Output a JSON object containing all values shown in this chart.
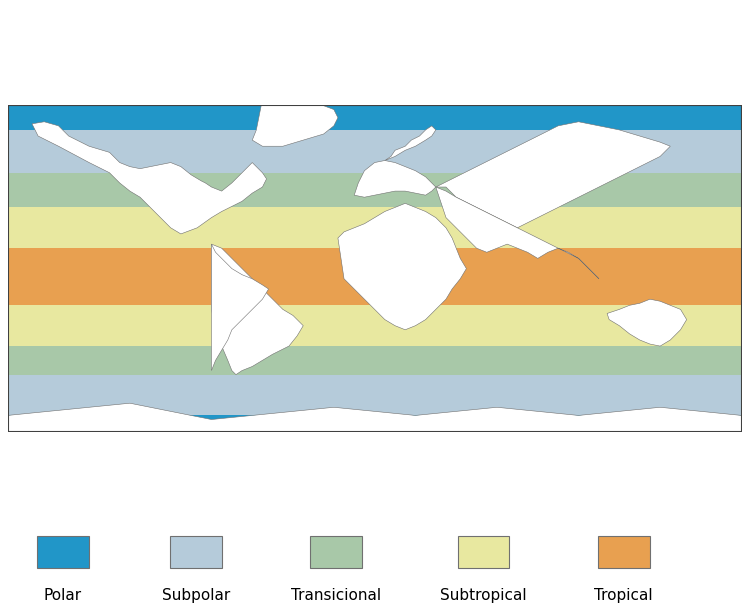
{
  "title": "",
  "legend_labels": [
    "Polar",
    "Subpolar",
    "Transicional",
    "Subtropical",
    "Tropical"
  ],
  "colors": {
    "polar": "#2196C8",
    "subpolar": "#B5CBDA",
    "transicional": "#A8C8A8",
    "subtropical": "#E8E8A0",
    "tropical": "#E8A050",
    "land": "#FFFFFF",
    "border": "#707070"
  },
  "legend_colors": [
    "#2196C8",
    "#B5CBDA",
    "#A8C8A8",
    "#E8E8A0",
    "#E8A050"
  ],
  "figsize": [
    7.53,
    6.07
  ],
  "dpi": 100,
  "zone_bands": [
    {
      "name": "subpolar_south",
      "lat_min": -72,
      "lat_max": -47,
      "color": "subpolar"
    },
    {
      "name": "transicional_south",
      "lat_min": -52,
      "lat_max": -32,
      "color": "transicional"
    },
    {
      "name": "subtropical_south",
      "lat_min": -38,
      "lat_max": -10,
      "color": "subtropical"
    },
    {
      "name": "tropical",
      "lat_min": -18,
      "lat_max": 18,
      "color": "tropical"
    },
    {
      "name": "subtropical_north",
      "lat_min": 10,
      "lat_max": 38,
      "color": "subtropical"
    },
    {
      "name": "transicional_north",
      "lat_min": 30,
      "lat_max": 54,
      "color": "transicional"
    },
    {
      "name": "subpolar_north",
      "lat_min": 47,
      "lat_max": 68,
      "color": "subpolar"
    }
  ]
}
